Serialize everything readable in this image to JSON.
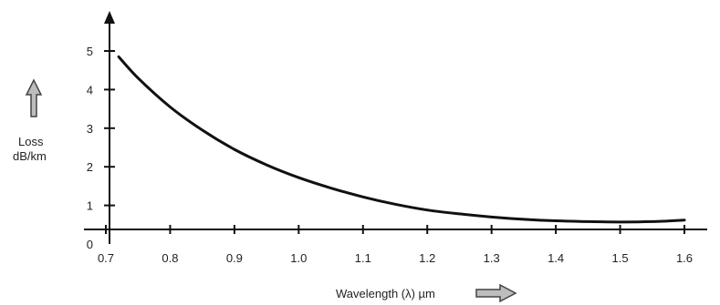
{
  "chart_data": {
    "type": "line",
    "xlabel": "Wavelength (λ) µm",
    "ylabel": [
      "Loss",
      "dB/km"
    ],
    "x_ticks": [
      "0.7",
      "0.8",
      "0.9",
      "1.0",
      "1.1",
      "1.2",
      "1.3",
      "1.4",
      "1.5",
      "1.6"
    ],
    "y_ticks": [
      "0",
      "1",
      "2",
      "3",
      "4",
      "5"
    ],
    "xlim": [
      0.7,
      1.6
    ],
    "ylim": [
      0,
      5
    ],
    "grid": false,
    "legend": "none",
    "series": [
      {
        "x": [
          0.72,
          0.75,
          0.8,
          0.85,
          0.9,
          0.95,
          1.0,
          1.05,
          1.1,
          1.15,
          1.2,
          1.25,
          1.3,
          1.35,
          1.4,
          1.45,
          1.5,
          1.55,
          1.6
        ],
        "values": [
          4.85,
          4.3,
          3.55,
          2.95,
          2.45,
          2.05,
          1.72,
          1.45,
          1.22,
          1.03,
          0.88,
          0.78,
          0.7,
          0.64,
          0.6,
          0.58,
          0.57,
          0.58,
          0.62
        ]
      }
    ]
  }
}
